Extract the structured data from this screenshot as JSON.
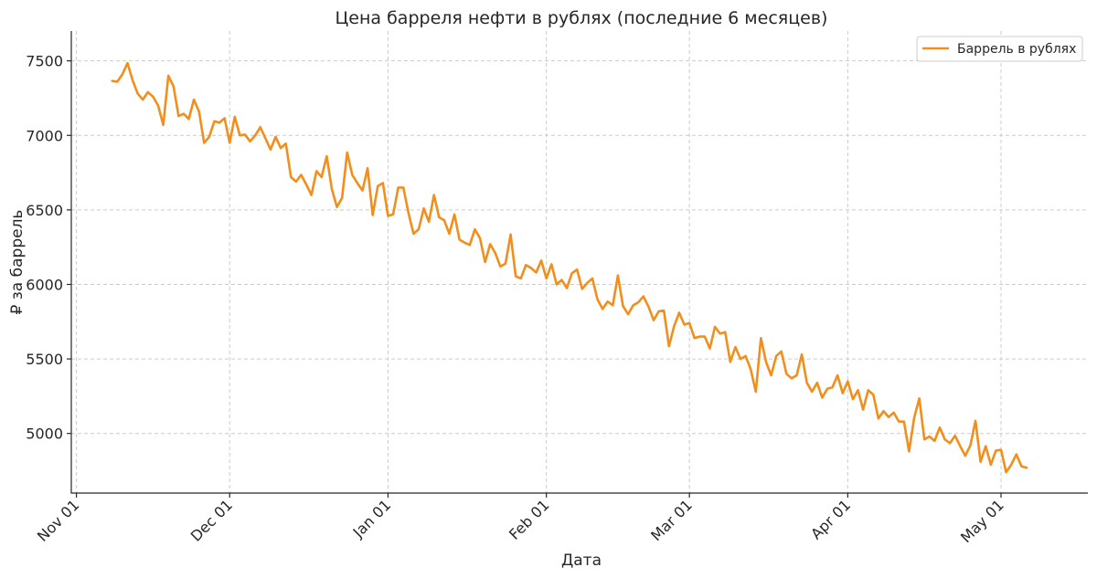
{
  "chart_data": {
    "type": "line",
    "title": "Цена барреля нефти в рублях (последние 6 месяцев)",
    "xlabel": "Дата",
    "ylabel": "₽ за баррель",
    "xlim": [
      "2024-10-31",
      "2025-05-18"
    ],
    "ylim": [
      4600,
      7700
    ],
    "x_ticks": [
      {
        "date": "2024-11-01",
        "label": "Nov 01"
      },
      {
        "date": "2024-12-01",
        "label": "Dec 01"
      },
      {
        "date": "2025-01-01",
        "label": "Jan 01"
      },
      {
        "date": "2025-02-01",
        "label": "Feb 01"
      },
      {
        "date": "2025-03-01",
        "label": "Mar 01"
      },
      {
        "date": "2025-04-01",
        "label": "Apr 01"
      },
      {
        "date": "2025-05-01",
        "label": "May 01"
      }
    ],
    "y_ticks": [
      5000,
      5500,
      6000,
      6500,
      7000,
      7500
    ],
    "grid": true,
    "legend": "top-right",
    "colors": {
      "series": "#f28e1c",
      "axis": "#262626",
      "grid": "#cccccc"
    },
    "series": [
      {
        "name": "Баррель в рублях",
        "start_date": "2024-11-08",
        "step_days": 1,
        "values": [
          7365,
          7360,
          7410,
          7485,
          7370,
          7280,
          7240,
          7290,
          7260,
          7200,
          7070,
          7400,
          7330,
          7130,
          7145,
          7110,
          7240,
          7160,
          6950,
          6990,
          7095,
          7085,
          7115,
          6950,
          7125,
          7000,
          7005,
          6960,
          7000,
          7055,
          6980,
          6905,
          6990,
          6915,
          6945,
          6720,
          6690,
          6735,
          6670,
          6600,
          6760,
          6720,
          6860,
          6640,
          6520,
          6580,
          6885,
          6735,
          6680,
          6630,
          6780,
          6465,
          6660,
          6680,
          6460,
          6470,
          6650,
          6650,
          6480,
          6340,
          6370,
          6510,
          6420,
          6600,
          6450,
          6430,
          6340,
          6470,
          6300,
          6280,
          6265,
          6370,
          6310,
          6150,
          6270,
          6210,
          6120,
          6140,
          6335,
          6055,
          6040,
          6130,
          6110,
          6080,
          6160,
          6040,
          6135,
          6000,
          6030,
          5975,
          6075,
          6100,
          5970,
          6010,
          6040,
          5900,
          5835,
          5885,
          5860,
          6060,
          5855,
          5800,
          5860,
          5880,
          5920,
          5850,
          5760,
          5820,
          5825,
          5585,
          5720,
          5810,
          5730,
          5740,
          5640,
          5650,
          5650,
          5570,
          5715,
          5670,
          5680,
          5480,
          5580,
          5500,
          5520,
          5430,
          5280,
          5640,
          5480,
          5390,
          5520,
          5550,
          5400,
          5370,
          5390,
          5530,
          5340,
          5280,
          5340,
          5240,
          5300,
          5310,
          5390,
          5270,
          5350,
          5230,
          5290,
          5160,
          5290,
          5260,
          5100,
          5150,
          5110,
          5140,
          5080,
          5080,
          4880,
          5105,
          5235,
          4960,
          4980,
          4950,
          5040,
          4960,
          4935,
          4985,
          4915,
          4850,
          4920,
          5085,
          4810,
          4915,
          4790,
          4885,
          4890,
          4740,
          4790,
          4860,
          4780,
          4770
        ]
      }
    ]
  }
}
